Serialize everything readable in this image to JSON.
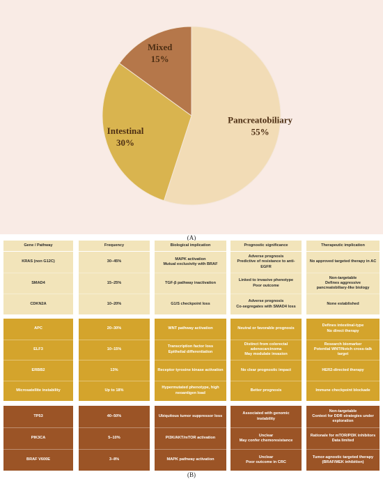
{
  "chart_data": {
    "type": "pie",
    "categories": [
      "Pancreatobiliary",
      "Intestinal",
      "Mixed"
    ],
    "values": [
      55,
      30,
      15
    ],
    "value_labels": [
      "55%",
      "30%",
      "15%"
    ],
    "colors": [
      "#f2dcb6",
      "#d9b44f",
      "#b5774a"
    ]
  },
  "panel_a_label": "(A)",
  "table": {
    "headers": [
      "Gene / Pathway",
      "Frequency",
      "Biological implication",
      "Prognostic significance",
      "Therapeutic implication"
    ],
    "groups": [
      {
        "color": "#f2e4ba",
        "text_color": "#2b2b2b",
        "rows": [
          [
            "KRAS (non G12C)",
            "30–45%",
            "MAPK activation\nMutual exclusivity with BRAF",
            "Adverse prognosis\nPredictive of resistance to anti-EGFR",
            "No approved targeted therapy in AC"
          ],
          [
            "SMAD4",
            "15–25%",
            "TGF-β pathway inactivation",
            "Linked to invasive phenotype\nPoor outcome",
            "Non-targetable\nDefines aggressive pancreatobiliary-like biology"
          ],
          [
            "CDKN2A",
            "10–20%",
            "G1/S checkpoint loss",
            "Adverse prognosis\nCo-segregates with SMAD4 loss",
            "None established"
          ]
        ]
      },
      {
        "color": "#d4a42c",
        "text_color": "#ffffff",
        "rows": [
          [
            "APC",
            "20–30%",
            "WNT pathway activation",
            "Neutral or favorable prognosis",
            "Defines intestinal-type\nNo direct therapy"
          ],
          [
            "ELF3",
            "10–15%",
            "Transcription factor loss\nEpithelial differentiation",
            "Distinct from colorectal adenocarcinoma\nMay modulate invasion",
            "Research biomarker\nPotential WNT/Notch cross-talk target"
          ],
          [
            "ERBB2",
            "13%",
            "Receptor tyrosine kinase activation",
            "No clear prognostic impact",
            "HER2-directed therapy"
          ],
          [
            "Microsatellite instability",
            "Up to 18%",
            "Hypermutated phenotype, high neoantigen load",
            "Better prognosis",
            "Immune checkpoint blockade"
          ]
        ]
      },
      {
        "color": "#9b5426",
        "text_color": "#ffffff",
        "rows": [
          [
            "TP53",
            "40–50%",
            "Ubiquitous tumor suppressor loss",
            "Associated with genomic instability",
            "Non-targetable\nContext for DDR strategies under exploration"
          ],
          [
            "PIK3CA",
            "5–10%",
            "PI3K/AKT/mTOR activation",
            "Unclear\nMay confer chemoresistance",
            "Rationale for mTOR/PI3K inhibitors\nData limited"
          ],
          [
            "BRAF V600E",
            "3–8%",
            "MAPK pathway activation",
            "Unclear\nPoor outcome in CRC",
            "Tumor-agnostic targeted therapy (BRAF/MEK inhibition)"
          ]
        ]
      }
    ]
  },
  "panel_b_label": "(B)"
}
